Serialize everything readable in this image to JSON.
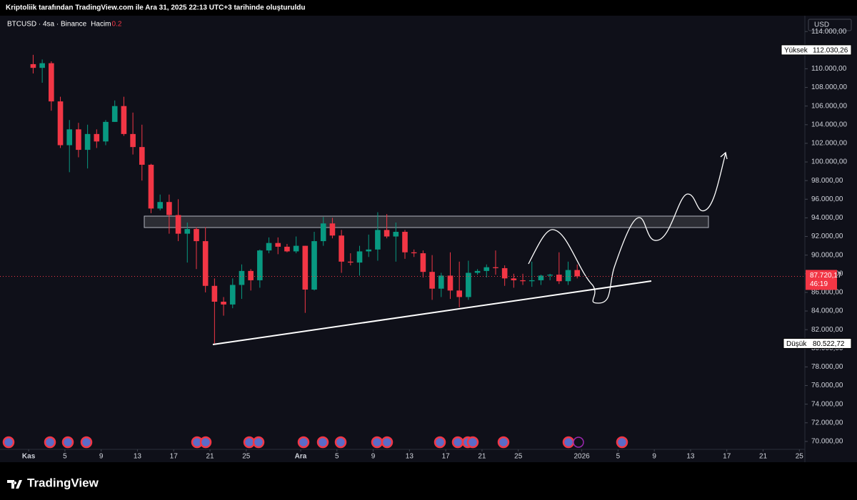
{
  "header": {
    "caption": "Kriptoliik tarafından TradingView.com ile Ara 31, 2025 22:13 UTC+3 tarihinde oluşturuldu"
  },
  "chart_data": {
    "type": "candlestick",
    "title": "BTCUSD · 4sa · Binance",
    "volume_label": "Hacim",
    "volume_setting": "0.2",
    "currency": "USD",
    "up_color": "#089981",
    "down_color": "#f23645",
    "grid": false,
    "x": [
      "2025-11-01",
      "2025-11-02",
      "2025-11-03",
      "2025-11-04",
      "2025-11-05",
      "2025-11-06",
      "2025-11-07",
      "2025-11-08",
      "2025-11-09",
      "2025-11-10",
      "2025-11-11",
      "2025-11-12",
      "2025-11-13",
      "2025-11-14",
      "2025-11-15",
      "2025-11-16",
      "2025-11-17",
      "2025-11-18",
      "2025-11-19",
      "2025-11-20",
      "2025-11-21",
      "2025-11-22",
      "2025-11-23",
      "2025-11-24",
      "2025-11-25",
      "2025-11-26",
      "2025-11-27",
      "2025-11-28",
      "2025-11-29",
      "2025-11-30",
      "2025-12-01",
      "2025-12-02",
      "2025-12-03",
      "2025-12-04",
      "2025-12-05",
      "2025-12-06",
      "2025-12-07",
      "2025-12-08",
      "2025-12-09",
      "2025-12-10",
      "2025-12-11",
      "2025-12-12",
      "2025-12-13",
      "2025-12-14",
      "2025-12-15",
      "2025-12-16",
      "2025-12-17",
      "2025-12-18",
      "2025-12-19",
      "2025-12-20",
      "2025-12-21",
      "2025-12-22",
      "2025-12-23",
      "2025-12-24",
      "2025-12-25",
      "2025-12-26",
      "2025-12-27",
      "2025-12-28",
      "2025-12-29",
      "2025-12-30",
      "2025-12-31"
    ],
    "open": [
      110500,
      110100,
      110600,
      106500,
      101800,
      103500,
      101300,
      103000,
      102200,
      104300,
      106000,
      103000,
      101600,
      99700,
      95000,
      95700,
      94300,
      92300,
      92800,
      91500,
      86700,
      85000,
      84700,
      86800,
      88300,
      87300,
      90500,
      91300,
      90900,
      90400,
      91000,
      86300,
      91500,
      93400,
      92100,
      89300,
      89200,
      90400,
      90600,
      92700,
      92000,
      92500,
      90300,
      90200,
      88200,
      86400,
      87800,
      86200,
      85500,
      88100,
      88300,
      88700,
      88600,
      87500,
      87300,
      87200,
      87300,
      87800,
      87900,
      87200,
      88400
    ],
    "high": [
      111500,
      111000,
      110800,
      107000,
      104500,
      104200,
      104000,
      103500,
      104500,
      106600,
      107000,
      105300,
      104000,
      99800,
      96500,
      96500,
      96000,
      93500,
      93000,
      93000,
      87500,
      85500,
      87500,
      89000,
      88500,
      90600,
      91900,
      91900,
      91200,
      92000,
      91000,
      92500,
      94100,
      94000,
      92700,
      90200,
      91000,
      92200,
      94600,
      94400,
      93500,
      92700,
      90600,
      90500,
      90000,
      88100,
      90300,
      89300,
      89400,
      88500,
      89000,
      90500,
      88900,
      88000,
      88000,
      89300,
      87900,
      88000,
      90300,
      89300,
      89000
    ],
    "low": [
      109500,
      108500,
      105500,
      101500,
      98900,
      100500,
      99300,
      101500,
      101800,
      104300,
      102800,
      100800,
      98000,
      94500,
      94800,
      92300,
      91500,
      89200,
      88500,
      86000,
      80500,
      83500,
      84300,
      85300,
      86200,
      86500,
      90200,
      90100,
      90300,
      90200,
      83800,
      86200,
      91000,
      91800,
      88100,
      88900,
      87800,
      89800,
      89400,
      91800,
      89300,
      89600,
      89800,
      87600,
      85200,
      85500,
      85300,
      84400,
      85200,
      87900,
      87600,
      87900,
      86700,
      86500,
      86800,
      86600,
      86800,
      87300,
      86900,
      86800,
      87500
    ],
    "close": [
      110100,
      110600,
      106500,
      101800,
      103500,
      101300,
      103000,
      102200,
      104300,
      106000,
      103000,
      101600,
      99700,
      95000,
      95700,
      94300,
      92300,
      92800,
      91500,
      86700,
      85000,
      84700,
      86800,
      88300,
      87300,
      90500,
      91300,
      90900,
      90400,
      91000,
      86300,
      91500,
      93400,
      92100,
      89300,
      89200,
      90400,
      90600,
      92700,
      92000,
      92500,
      90300,
      90200,
      88200,
      86400,
      87800,
      86200,
      85500,
      88100,
      88300,
      88700,
      88600,
      87500,
      87300,
      87200,
      87300,
      87800,
      87900,
      87200,
      88400,
      87720.17
    ],
    "xlim": [
      "2025-10-29",
      "2026-01-26"
    ],
    "xticks": [
      {
        "value": "2025-11-01",
        "label": "Kas"
      },
      {
        "value": "2025-11-05",
        "label": "5"
      },
      {
        "value": "2025-11-09",
        "label": "9"
      },
      {
        "value": "2025-11-13",
        "label": "13"
      },
      {
        "value": "2025-11-17",
        "label": "17"
      },
      {
        "value": "2025-11-21",
        "label": "21"
      },
      {
        "value": "2025-11-25",
        "label": "25"
      },
      {
        "value": "2025-12-01",
        "label": "Ara"
      },
      {
        "value": "2025-12-05",
        "label": "5"
      },
      {
        "value": "2025-12-09",
        "label": "9"
      },
      {
        "value": "2025-12-13",
        "label": "13"
      },
      {
        "value": "2025-12-17",
        "label": "17"
      },
      {
        "value": "2025-12-21",
        "label": "21"
      },
      {
        "value": "2025-12-25",
        "label": "25"
      },
      {
        "value": "2026-01-01",
        "label": "2026"
      },
      {
        "value": "2026-01-05",
        "label": "5"
      },
      {
        "value": "2026-01-09",
        "label": "9"
      },
      {
        "value": "2026-01-13",
        "label": "13"
      },
      {
        "value": "2026-01-17",
        "label": "17"
      },
      {
        "value": "2026-01-21",
        "label": "21"
      },
      {
        "value": "2026-01-25",
        "label": "25"
      }
    ],
    "ylim": [
      69150,
      115700
    ],
    "yticks": [
      {
        "value": 70000,
        "label": "70.000,00"
      },
      {
        "value": 72000,
        "label": "72.000,00"
      },
      {
        "value": 74000,
        "label": "74.000,00"
      },
      {
        "value": 76000,
        "label": "76.000,00"
      },
      {
        "value": 78000,
        "label": "78.000,00"
      },
      {
        "value": 80000,
        "label": "80.000,00"
      },
      {
        "value": 82000,
        "label": "82.000,00"
      },
      {
        "value": 84000,
        "label": "84.000,00"
      },
      {
        "value": 86000,
        "label": "86.000,00"
      },
      {
        "value": 88000,
        "label": "88.000,00"
      },
      {
        "value": 90000,
        "label": "90.000,00"
      },
      {
        "value": 92000,
        "label": "92.000,00"
      },
      {
        "value": 94000,
        "label": "94.000,00"
      },
      {
        "value": 96000,
        "label": "96.000,00"
      },
      {
        "value": 98000,
        "label": "98.000,00"
      },
      {
        "value": 100000,
        "label": "100.000,00"
      },
      {
        "value": 102000,
        "label": "102.000,00"
      },
      {
        "value": 104000,
        "label": "104.000,00"
      },
      {
        "value": 106000,
        "label": "106.000,00"
      },
      {
        "value": 108000,
        "label": "108.000,00"
      },
      {
        "value": 110000,
        "label": "110.000,00"
      },
      {
        "value": 112000,
        "label": "112.000,00"
      },
      {
        "value": 114000,
        "label": "114.000,00"
      }
    ],
    "high_marker": {
      "label": "Yüksek",
      "value": 112030.26,
      "value_label": "112.030,26"
    },
    "low_marker": {
      "label": "Düşük",
      "value": 80522.72,
      "value_label": "80.522,72"
    },
    "last_price": {
      "value": 87720.17,
      "value_label": "87.720,17",
      "countdown": "46:19"
    }
  },
  "footer": {
    "brand": "TradingView"
  }
}
